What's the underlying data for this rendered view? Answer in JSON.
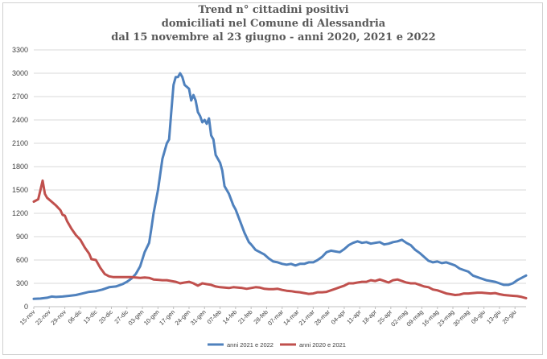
{
  "chart_data": {
    "type": "line",
    "title_lines": [
      "Trend n° cittadini positivi",
      "domiciliati nel Comune di Alessandria",
      "dal 15 novembre al 23 giugno - anni 2020, 2021 e 2022"
    ],
    "x_tick_labels": [
      "15-nov",
      "22-nov",
      "29-nov",
      "06-dic",
      "13-dic",
      "20-dic",
      "27-dic",
      "03-gen",
      "10-gen",
      "17-gen",
      "24-gen",
      "31-gen",
      "07-feb",
      "14-feb",
      "21-feb",
      "28-feb",
      "07-mar",
      "14-mar",
      "21-mar",
      "28-mar",
      "04-apr",
      "11-apr",
      "18-apr",
      "25-apr",
      "02-mag",
      "09-mag",
      "16-mag",
      "23-mag",
      "30-mag",
      "06-giu",
      "13-giu",
      "20-giu"
    ],
    "y_ticks": [
      0,
      300,
      600,
      900,
      1200,
      1500,
      1800,
      2100,
      2400,
      2700,
      3000,
      3300
    ],
    "ylim": [
      0,
      3300
    ],
    "x_range_days": [
      0,
      222
    ],
    "grid": true,
    "legend_position": "bottom",
    "series": [
      {
        "name": "anni 2021 e 2022",
        "color": "#4f81bd",
        "points": [
          [
            0,
            100
          ],
          [
            3,
            105
          ],
          [
            6,
            115
          ],
          [
            8,
            130
          ],
          [
            10,
            125
          ],
          [
            13,
            130
          ],
          [
            16,
            140
          ],
          [
            19,
            150
          ],
          [
            22,
            170
          ],
          [
            25,
            190
          ],
          [
            28,
            200
          ],
          [
            31,
            220
          ],
          [
            34,
            250
          ],
          [
            37,
            260
          ],
          [
            40,
            290
          ],
          [
            42,
            320
          ],
          [
            44,
            360
          ],
          [
            46,
            420
          ],
          [
            48,
            520
          ],
          [
            50,
            700
          ],
          [
            52,
            820
          ],
          [
            53,
            1000
          ],
          [
            54,
            1200
          ],
          [
            56,
            1500
          ],
          [
            58,
            1900
          ],
          [
            60,
            2100
          ],
          [
            61,
            2150
          ],
          [
            62,
            2500
          ],
          [
            63,
            2850
          ],
          [
            64,
            2950
          ],
          [
            65,
            2950
          ],
          [
            66,
            3000
          ],
          [
            67,
            2950
          ],
          [
            68,
            2850
          ],
          [
            70,
            2800
          ],
          [
            71,
            2650
          ],
          [
            72,
            2720
          ],
          [
            73,
            2650
          ],
          [
            74,
            2500
          ],
          [
            75,
            2450
          ],
          [
            76,
            2370
          ],
          [
            77,
            2400
          ],
          [
            78,
            2350
          ],
          [
            79,
            2420
          ],
          [
            80,
            2200
          ],
          [
            81,
            2150
          ],
          [
            82,
            1950
          ],
          [
            84,
            1850
          ],
          [
            85,
            1750
          ],
          [
            86,
            1550
          ],
          [
            88,
            1450
          ],
          [
            90,
            1300
          ],
          [
            91,
            1250
          ],
          [
            93,
            1100
          ],
          [
            95,
            950
          ],
          [
            97,
            830
          ],
          [
            98,
            800
          ],
          [
            100,
            730
          ],
          [
            102,
            700
          ],
          [
            104,
            670
          ],
          [
            106,
            620
          ],
          [
            108,
            580
          ],
          [
            110,
            570
          ],
          [
            112,
            550
          ],
          [
            114,
            540
          ],
          [
            116,
            550
          ],
          [
            118,
            530
          ],
          [
            120,
            550
          ],
          [
            122,
            550
          ],
          [
            124,
            570
          ],
          [
            126,
            570
          ],
          [
            128,
            600
          ],
          [
            130,
            640
          ],
          [
            132,
            700
          ],
          [
            134,
            720
          ],
          [
            136,
            710
          ],
          [
            138,
            700
          ],
          [
            140,
            740
          ],
          [
            142,
            790
          ],
          [
            144,
            820
          ],
          [
            146,
            840
          ],
          [
            148,
            820
          ],
          [
            150,
            830
          ],
          [
            152,
            810
          ],
          [
            154,
            820
          ],
          [
            156,
            830
          ],
          [
            158,
            800
          ],
          [
            160,
            810
          ],
          [
            162,
            830
          ],
          [
            164,
            840
          ],
          [
            166,
            860
          ],
          [
            168,
            820
          ],
          [
            170,
            790
          ],
          [
            172,
            730
          ],
          [
            174,
            690
          ],
          [
            176,
            640
          ],
          [
            178,
            590
          ],
          [
            180,
            570
          ],
          [
            182,
            580
          ],
          [
            184,
            560
          ],
          [
            186,
            570
          ],
          [
            188,
            550
          ],
          [
            190,
            530
          ],
          [
            192,
            490
          ],
          [
            194,
            470
          ],
          [
            196,
            450
          ],
          [
            198,
            400
          ],
          [
            200,
            380
          ],
          [
            202,
            360
          ],
          [
            204,
            340
          ],
          [
            206,
            330
          ],
          [
            208,
            320
          ],
          [
            210,
            300
          ],
          [
            212,
            280
          ],
          [
            214,
            280
          ],
          [
            216,
            300
          ],
          [
            218,
            340
          ],
          [
            220,
            370
          ],
          [
            222,
            400
          ]
        ]
      },
      {
        "name": "anni 2020 e 2021",
        "color": "#c0504d",
        "points": [
          [
            0,
            1350
          ],
          [
            2,
            1380
          ],
          [
            3,
            1500
          ],
          [
            4,
            1620
          ],
          [
            5,
            1450
          ],
          [
            6,
            1400
          ],
          [
            8,
            1350
          ],
          [
            10,
            1300
          ],
          [
            12,
            1240
          ],
          [
            13,
            1180
          ],
          [
            14,
            1170
          ],
          [
            15,
            1100
          ],
          [
            17,
            1000
          ],
          [
            19,
            920
          ],
          [
            21,
            860
          ],
          [
            23,
            760
          ],
          [
            25,
            680
          ],
          [
            26,
            610
          ],
          [
            28,
            600
          ],
          [
            30,
            500
          ],
          [
            32,
            420
          ],
          [
            34,
            390
          ],
          [
            36,
            380
          ],
          [
            38,
            380
          ],
          [
            40,
            380
          ],
          [
            42,
            380
          ],
          [
            44,
            380
          ],
          [
            46,
            375
          ],
          [
            48,
            370
          ],
          [
            50,
            375
          ],
          [
            52,
            370
          ],
          [
            54,
            350
          ],
          [
            56,
            345
          ],
          [
            58,
            340
          ],
          [
            60,
            340
          ],
          [
            62,
            330
          ],
          [
            64,
            320
          ],
          [
            66,
            300
          ],
          [
            68,
            310
          ],
          [
            70,
            320
          ],
          [
            72,
            300
          ],
          [
            74,
            270
          ],
          [
            76,
            300
          ],
          [
            78,
            290
          ],
          [
            80,
            280
          ],
          [
            82,
            260
          ],
          [
            84,
            250
          ],
          [
            86,
            245
          ],
          [
            88,
            240
          ],
          [
            90,
            250
          ],
          [
            92,
            245
          ],
          [
            94,
            240
          ],
          [
            96,
            230
          ],
          [
            98,
            240
          ],
          [
            100,
            250
          ],
          [
            102,
            245
          ],
          [
            104,
            230
          ],
          [
            106,
            225
          ],
          [
            108,
            225
          ],
          [
            110,
            230
          ],
          [
            112,
            215
          ],
          [
            114,
            205
          ],
          [
            116,
            200
          ],
          [
            118,
            190
          ],
          [
            120,
            185
          ],
          [
            122,
            175
          ],
          [
            124,
            165
          ],
          [
            126,
            170
          ],
          [
            128,
            185
          ],
          [
            130,
            185
          ],
          [
            132,
            190
          ],
          [
            134,
            210
          ],
          [
            136,
            230
          ],
          [
            138,
            250
          ],
          [
            140,
            270
          ],
          [
            142,
            300
          ],
          [
            144,
            300
          ],
          [
            146,
            310
          ],
          [
            148,
            320
          ],
          [
            150,
            320
          ],
          [
            152,
            340
          ],
          [
            154,
            330
          ],
          [
            156,
            350
          ],
          [
            158,
            330
          ],
          [
            160,
            310
          ],
          [
            162,
            340
          ],
          [
            164,
            350
          ],
          [
            166,
            330
          ],
          [
            168,
            310
          ],
          [
            170,
            300
          ],
          [
            172,
            300
          ],
          [
            174,
            280
          ],
          [
            176,
            260
          ],
          [
            178,
            250
          ],
          [
            180,
            220
          ],
          [
            182,
            210
          ],
          [
            184,
            190
          ],
          [
            186,
            170
          ],
          [
            188,
            160
          ],
          [
            190,
            150
          ],
          [
            192,
            155
          ],
          [
            194,
            170
          ],
          [
            196,
            170
          ],
          [
            198,
            175
          ],
          [
            200,
            180
          ],
          [
            202,
            180
          ],
          [
            204,
            175
          ],
          [
            206,
            170
          ],
          [
            208,
            175
          ],
          [
            210,
            160
          ],
          [
            212,
            150
          ],
          [
            214,
            145
          ],
          [
            216,
            140
          ],
          [
            218,
            135
          ],
          [
            220,
            125
          ],
          [
            222,
            110
          ]
        ]
      }
    ]
  }
}
